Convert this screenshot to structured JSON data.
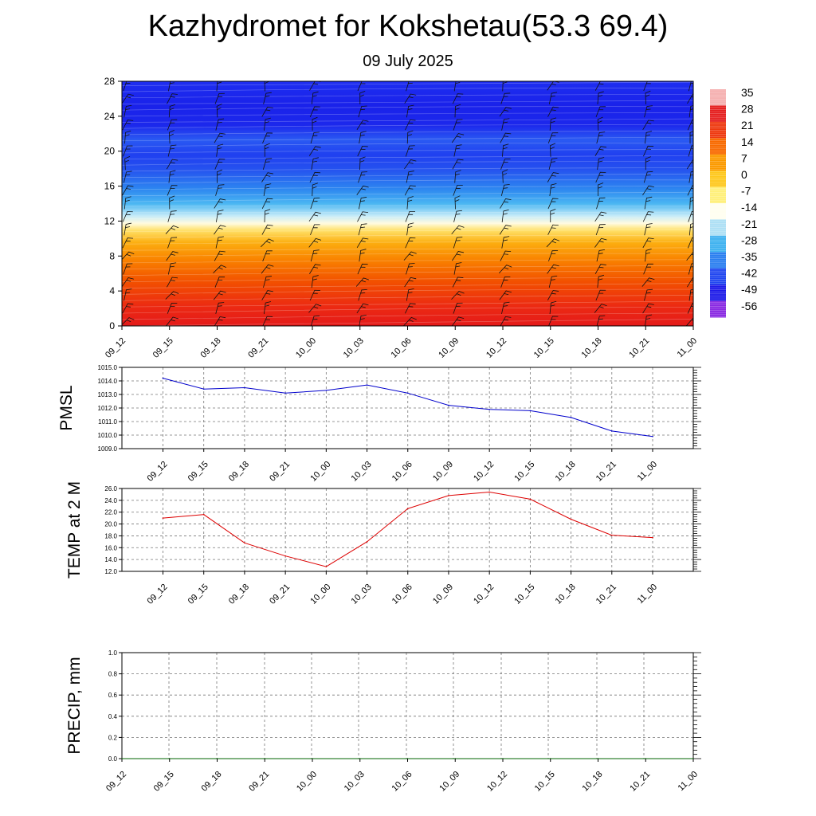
{
  "header": {
    "title": "Kazhydromet for Kokshetau(53.3 69.4)",
    "subtitle": "09 July 2025"
  },
  "chart_data": [
    {
      "type": "heatmap",
      "id": "cross-section",
      "x_ticks": [
        "09_12",
        "09_15",
        "09_18",
        "09_21",
        "10_00",
        "10_03",
        "10_06",
        "10_09",
        "10_12",
        "10_15",
        "10_18",
        "10_21",
        "11_00"
      ],
      "y_ticks": [
        0,
        4,
        8,
        12,
        16,
        20,
        24,
        28
      ],
      "ylim": [
        0,
        28
      ],
      "freezing_level_y": [
        12.5,
        12.9,
        13.3
      ],
      "colorbar_labels": [
        "35",
        "28",
        "21",
        "14",
        "7",
        "0",
        "-7",
        "-14",
        "-21",
        "-28",
        "-35",
        "-42",
        "-49",
        "-56"
      ],
      "colorbar_colors": [
        "#f5b0b0",
        "#e52020",
        "#ee3a10",
        "#f86a00",
        "#fb9a00",
        "#fec81e",
        "#fff07a",
        "#fffef0",
        "#aee0f5",
        "#3fb2f0",
        "#2b7ff0",
        "#2348f0",
        "#1f1ce8",
        "#8a2be2"
      ],
      "overlay": "wind barbs",
      "grid": false
    },
    {
      "type": "line",
      "id": "pmsl",
      "ylabel": "PMSL",
      "categories": [
        "09_12",
        "09_15",
        "09_18",
        "09_21",
        "10_00",
        "10_03",
        "10_06",
        "10_09",
        "10_12",
        "10_15",
        "10_18",
        "10_21",
        "11_00"
      ],
      "values": [
        1014.2,
        1013.4,
        1013.5,
        1013.1,
        1013.3,
        1013.7,
        1013.1,
        1012.2,
        1011.9,
        1011.8,
        1011.3,
        1010.3,
        1009.9
      ],
      "y_ticks": [
        "1015.0",
        "1014.0",
        "1013.0",
        "1012.0",
        "1011.0",
        "1010.0",
        "1009.0"
      ],
      "ylim": [
        1009,
        1015
      ],
      "color": "#0000cc",
      "grid": true
    },
    {
      "type": "line",
      "id": "temp",
      "ylabel": "TEMP at 2 M",
      "categories": [
        "09_12",
        "09_15",
        "09_18",
        "09_21",
        "10_00",
        "10_03",
        "10_06",
        "10_09",
        "10_12",
        "10_15",
        "10_18",
        "10_21",
        "11_00"
      ],
      "values": [
        21.0,
        21.6,
        16.8,
        14.6,
        12.8,
        17.0,
        22.6,
        24.8,
        25.4,
        24.2,
        20.8,
        18.1,
        17.7
      ],
      "y_ticks": [
        "26.0",
        "24.0",
        "22.0",
        "20.0",
        "18.0",
        "16.0",
        "14.0",
        "12.0"
      ],
      "ylim": [
        12,
        26
      ],
      "color": "#dd0000",
      "grid": true
    },
    {
      "type": "line",
      "id": "precip",
      "ylabel": "PRECIP, mm",
      "categories": [
        "09_12",
        "09_15",
        "09_18",
        "09_21",
        "10_00",
        "10_03",
        "10_06",
        "10_09",
        "10_12",
        "10_15",
        "10_18",
        "10_21",
        "11_00"
      ],
      "values": [
        0,
        0,
        0,
        0,
        0,
        0,
        0,
        0,
        0,
        0,
        0,
        0,
        0
      ],
      "y_ticks": [
        "1.0",
        "0.8",
        "0.6",
        "0.4",
        "0.2",
        "0.0"
      ],
      "ylim": [
        0,
        1
      ],
      "color": "#006400",
      "grid": true
    }
  ]
}
